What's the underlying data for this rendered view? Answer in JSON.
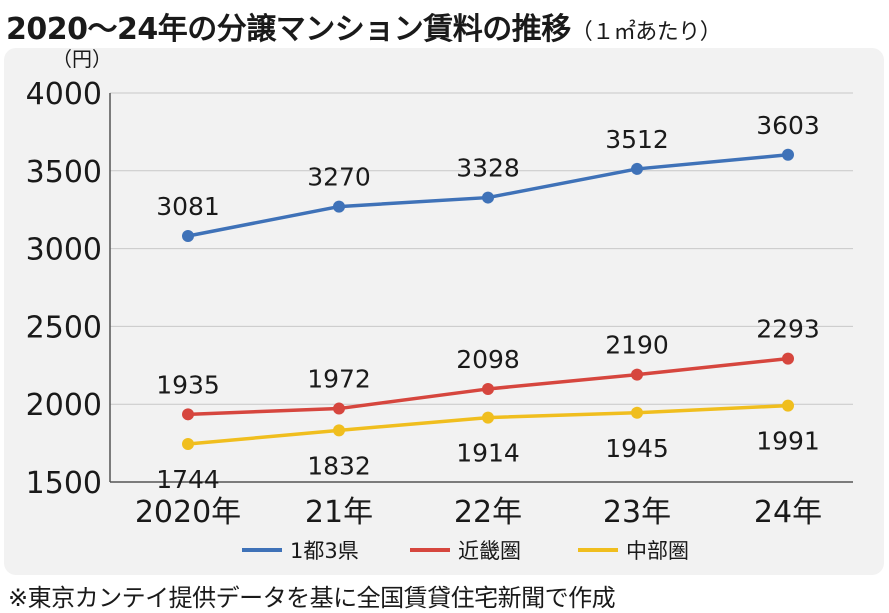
{
  "header": {
    "title": "2020～24年の分譲マンション賃料の推移",
    "subtitle": "（１㎡あたり）"
  },
  "footnote": "※東京カンテイ提供データを基に全国賃貸住宅新聞で作成",
  "chart_data": {
    "type": "line",
    "title": "2020～24年の分譲マンション賃料の推移（１㎡あたり）",
    "ylabel": "（円）",
    "xlabel": "",
    "categories": [
      "2020年",
      "21年",
      "22年",
      "23年",
      "24年"
    ],
    "ylim": [
      1500,
      4000
    ],
    "yticks": [
      1500,
      2000,
      2500,
      3000,
      3500,
      4000
    ],
    "grid": true,
    "legend_position": "bottom",
    "series": [
      {
        "name": "1都3県",
        "color": "#3f72b8",
        "values": [
          3081,
          3270,
          3328,
          3512,
          3603
        ]
      },
      {
        "name": "近畿圏",
        "color": "#d6463e",
        "values": [
          1935,
          1972,
          2098,
          2190,
          2293
        ]
      },
      {
        "name": "中部圏",
        "color": "#f0be1e",
        "values": [
          1744,
          1832,
          1914,
          1945,
          1991
        ]
      }
    ]
  }
}
